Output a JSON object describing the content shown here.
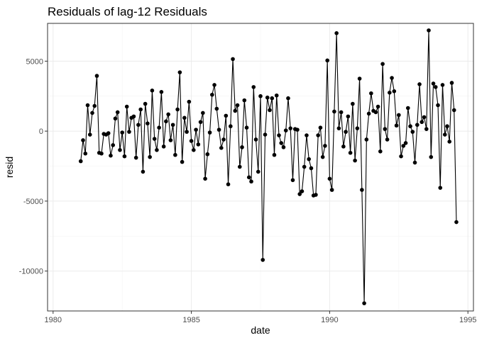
{
  "chart_data": {
    "type": "line",
    "title": "Residuals of lag-12 Residuals",
    "xlabel": "date",
    "ylabel": "resid",
    "xlim": [
      1979.8,
      1995.2
    ],
    "ylim": [
      -12850,
      7700
    ],
    "x_ticks": [
      1980,
      1985,
      1990,
      1995
    ],
    "x_tick_labels": [
      "1980",
      "1985",
      "1990",
      "1995"
    ],
    "y_ticks": [
      -10000,
      -5000,
      0,
      5000
    ],
    "y_tick_labels": [
      "-10000",
      "-5000",
      "0",
      "5000"
    ],
    "grid": true,
    "points_shown": true,
    "series": [
      {
        "x": [
          1981.0,
          1981.083,
          1981.167,
          1981.25,
          1981.333,
          1981.417,
          1981.5,
          1981.583,
          1981.667,
          1981.75,
          1981.833,
          1981.917,
          1982.0,
          1982.083,
          1982.167,
          1982.25,
          1982.333,
          1982.417,
          1982.5,
          1982.583,
          1982.667,
          1982.75,
          1982.833,
          1982.917,
          1983.0,
          1983.083,
          1983.167,
          1983.25,
          1983.333,
          1983.417,
          1983.5,
          1983.583,
          1983.667,
          1983.75,
          1983.833,
          1983.917,
          1984.0,
          1984.083,
          1984.167,
          1984.25,
          1984.333,
          1984.417,
          1984.5,
          1984.583,
          1984.667,
          1984.75,
          1984.833,
          1984.917,
          1985.0,
          1985.083,
          1985.167,
          1985.25,
          1985.333,
          1985.417,
          1985.5,
          1985.583,
          1985.667,
          1985.75,
          1985.833,
          1985.917,
          1986.0,
          1986.083,
          1986.167,
          1986.25,
          1986.333,
          1986.417,
          1986.5,
          1986.583,
          1986.667,
          1986.75,
          1986.833,
          1986.917,
          1987.0,
          1987.083,
          1987.167,
          1987.25,
          1987.333,
          1987.417,
          1987.5,
          1987.583,
          1987.667,
          1987.75,
          1987.833,
          1987.917,
          1988.0,
          1988.083,
          1988.167,
          1988.25,
          1988.333,
          1988.417,
          1988.5,
          1988.583,
          1988.667,
          1988.75,
          1988.833,
          1988.917,
          1989.0,
          1989.083,
          1989.167,
          1989.25,
          1989.333,
          1989.417,
          1989.5,
          1989.583,
          1989.667,
          1989.75,
          1989.833,
          1989.917,
          1990.0,
          1990.083,
          1990.167,
          1990.25,
          1990.333,
          1990.417,
          1990.5,
          1990.583,
          1990.667,
          1990.75,
          1990.833,
          1990.917,
          1991.0,
          1991.083,
          1991.167,
          1991.25,
          1991.333,
          1991.417,
          1991.5,
          1991.583,
          1991.667,
          1991.75,
          1991.833,
          1991.917,
          1992.0,
          1992.083,
          1992.167,
          1992.25,
          1992.333,
          1992.417,
          1992.5,
          1992.583,
          1992.667,
          1992.75,
          1992.833,
          1992.917,
          1993.0,
          1993.083,
          1993.167,
          1993.25,
          1993.333,
          1993.417,
          1993.5,
          1993.583,
          1993.667,
          1993.75,
          1993.833,
          1993.917,
          1994.0,
          1994.083,
          1994.167,
          1994.25,
          1994.333,
          1994.417,
          1994.5,
          1994.583
        ],
        "y": [
          -2150,
          -650,
          -1600,
          1850,
          -250,
          1300,
          1800,
          3950,
          -1550,
          -1600,
          -200,
          -250,
          -150,
          -1750,
          -1000,
          900,
          1350,
          -1350,
          -100,
          -1800,
          1750,
          -50,
          950,
          1050,
          -1900,
          450,
          1550,
          -2900,
          1950,
          550,
          -1850,
          2900,
          -550,
          -1350,
          250,
          2800,
          -1100,
          700,
          1200,
          -650,
          450,
          -1700,
          1550,
          4200,
          -2200,
          950,
          -50,
          2100,
          -700,
          -1350,
          100,
          -950,
          650,
          1300,
          -3400,
          -1650,
          -100,
          2600,
          3300,
          1600,
          100,
          -1200,
          -600,
          1100,
          -3800,
          350,
          5150,
          1450,
          1850,
          -2550,
          -1150,
          2200,
          250,
          -3300,
          -3600,
          3150,
          -600,
          -2900,
          2500,
          -9200,
          -250,
          2400,
          1500,
          2350,
          -1700,
          2550,
          -300,
          -850,
          -1150,
          50,
          2350,
          200,
          -3500,
          150,
          100,
          -4500,
          -4300,
          -2550,
          -300,
          -2000,
          -2650,
          -4600,
          -4550,
          -300,
          250,
          -1850,
          -1050,
          5050,
          -3400,
          -4200,
          1400,
          7000,
          200,
          1350,
          -1100,
          -50,
          1050,
          -1550,
          1950,
          -2100,
          200,
          3750,
          -4200,
          -12300,
          -600,
          1250,
          2700,
          1450,
          1350,
          1750,
          -1450,
          4800,
          150,
          -600,
          2750,
          3800,
          2850,
          400,
          1150,
          -1800,
          -1050,
          -850,
          1650,
          350,
          -50,
          -2250,
          450,
          3350,
          650,
          1000,
          150,
          7200,
          -1850,
          3400,
          3150,
          1850,
          -4050,
          3300,
          -250,
          350,
          -750,
          3450,
          1500,
          -6500
        ]
      }
    ]
  }
}
